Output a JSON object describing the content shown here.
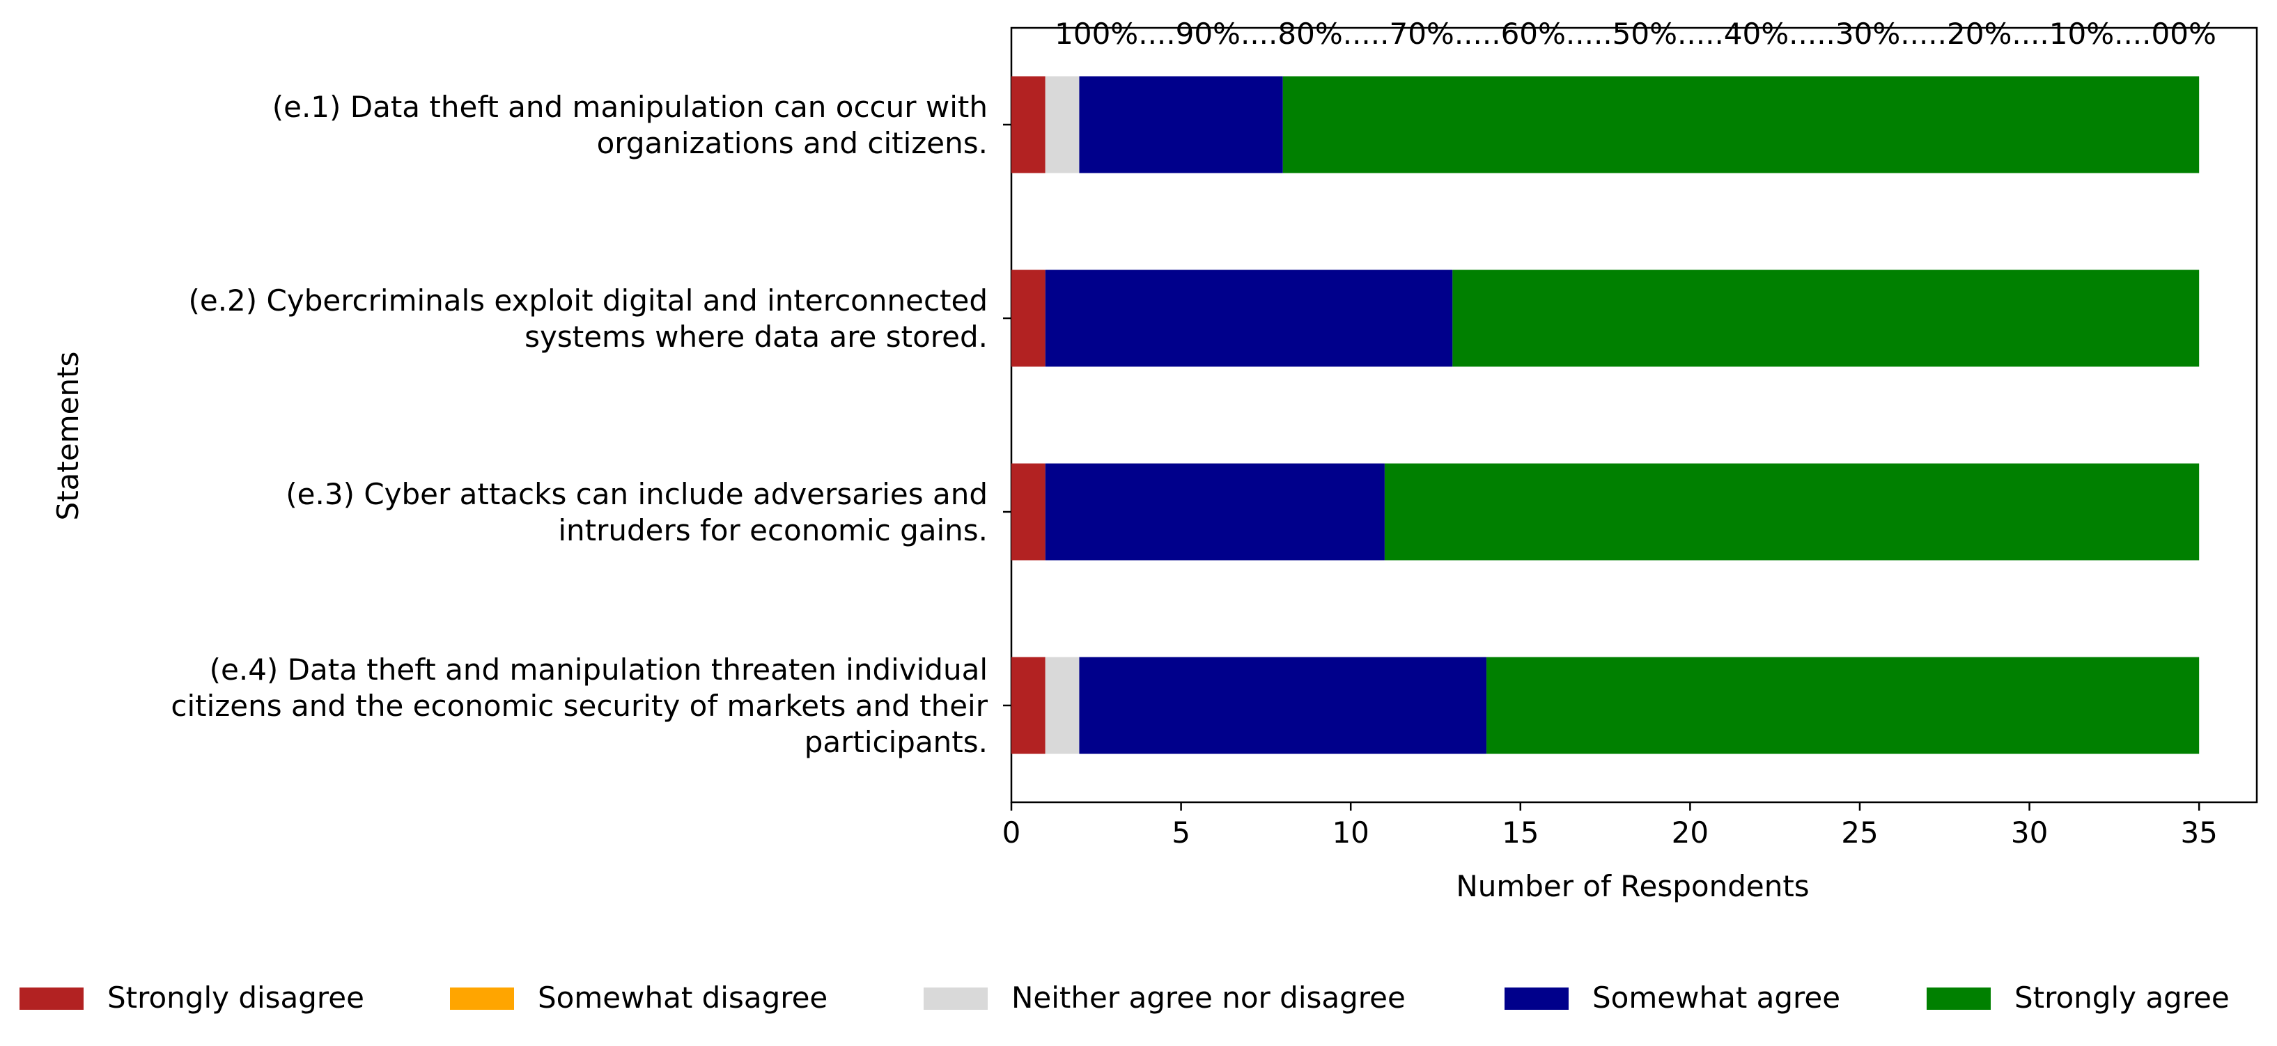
{
  "chart_data": {
    "type": "bar",
    "orientation": "horizontal",
    "stacked": true,
    "categories": [
      [
        "(e.1) Data theft and manipulation can occur with",
        "organizations and citizens."
      ],
      [
        "(e.2) Cybercriminals exploit digital and interconnected",
        "systems where data are stored."
      ],
      [
        "(e.3) Cyber attacks can include adversaries and",
        "intruders for economic gains."
      ],
      [
        "(e.4) Data theft and manipulation threaten individual",
        "citizens and the economic security of markets and their",
        "participants."
      ]
    ],
    "series": [
      {
        "name": "Strongly disagree",
        "color": "#b22222",
        "values": [
          1,
          1,
          1,
          1
        ]
      },
      {
        "name": "Somewhat disagree",
        "color": "#ffa500",
        "values": [
          0,
          0,
          0,
          0
        ]
      },
      {
        "name": "Neither agree nor disagree",
        "color": "#d9d9d9",
        "values": [
          1,
          0,
          0,
          1
        ]
      },
      {
        "name": "Somewhat agree",
        "color": "#00008b",
        "values": [
          6,
          12,
          10,
          12
        ]
      },
      {
        "name": "Strongly agree",
        "color": "#008000",
        "values": [
          27,
          22,
          24,
          21
        ]
      }
    ],
    "xlabel": "Number of Respondents",
    "ylabel": "Statements",
    "xlim": [
      0,
      36.7
    ],
    "xticks": [
      0,
      5,
      10,
      15,
      20,
      25,
      30,
      35
    ],
    "top_axis_label": "100%....90%....80%.....70%.....60%.....50%.....40%.....30%.....20%....10%....00%",
    "grid": false,
    "legend_position": "bottom"
  }
}
